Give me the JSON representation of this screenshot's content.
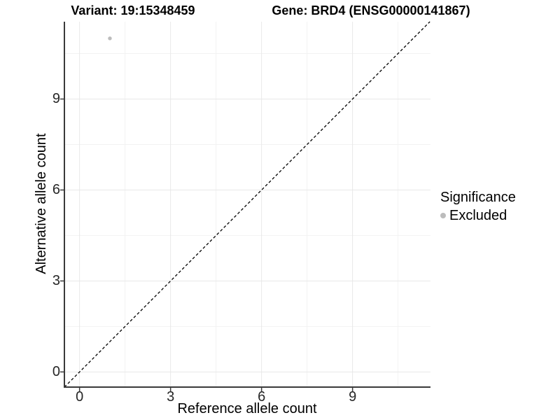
{
  "figure": {
    "titles": {
      "variant": "Variant: 19:15348459",
      "gene": "Gene: BRD4 (ENSG00000141867)"
    }
  },
  "legend": {
    "title": "Significance",
    "items": [
      {
        "label": "Excluded",
        "color": "#bcbcbc"
      }
    ]
  },
  "chart_data": {
    "type": "scatter",
    "title": "Variant: 19:15348459 | Gene: BRD4 (ENSG00000141867)",
    "xlabel": "Reference allele count",
    "ylabel": "Alternative allele count",
    "xlim": [
      -0.5,
      11.57
    ],
    "ylim": [
      -0.5,
      11.55
    ],
    "x_ticks": [
      0,
      3,
      6,
      9
    ],
    "y_ticks": [
      0,
      3,
      6,
      9
    ],
    "x_minor_ticks": [
      1.5,
      4.5,
      7.5,
      10.5
    ],
    "y_minor_ticks": [
      1.5,
      4.5,
      7.5,
      10.5
    ],
    "grid": true,
    "legend_position": "right",
    "series": [
      {
        "name": "Excluded",
        "color": "#bcbcbc",
        "points": [
          {
            "x": 1,
            "y": 11
          }
        ]
      }
    ],
    "reference_line": {
      "equation": "y = x",
      "style": "dashed",
      "color": "#000000"
    }
  },
  "colors": {
    "axis_line": "#3a3a3a",
    "grid_major": "#e8e8e8",
    "grid_minor": "#f2f2f2",
    "tick_label": "#262626",
    "background": "#ffffff"
  }
}
